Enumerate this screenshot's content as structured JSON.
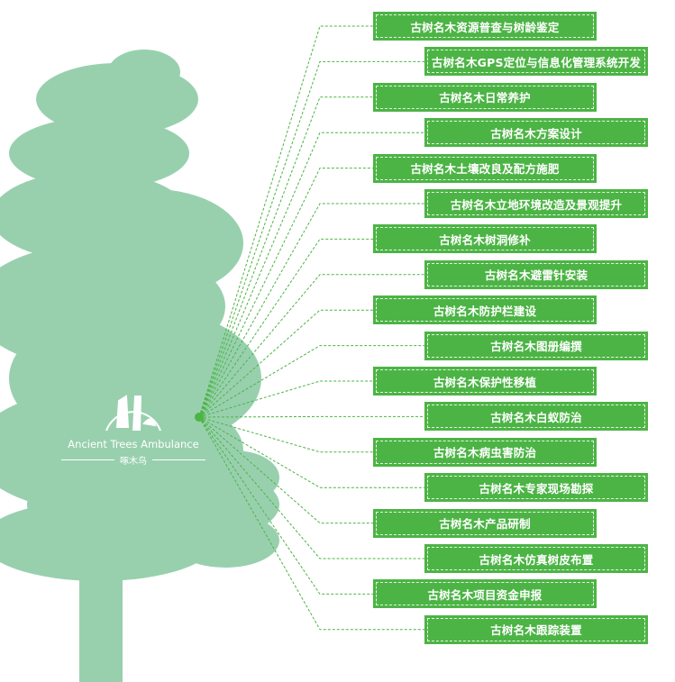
{
  "colors": {
    "tree": "#98d0ae",
    "accent": "#4cb445",
    "line": "#4cb445"
  },
  "logo": {
    "name_en": "Ancient Trees Ambulance",
    "name_cn": "啄木鸟"
  },
  "services": [
    "古树名木资源普查与树龄鉴定",
    "古树名木GPS定位与信息化管理系统开发",
    "古树名木日常养护",
    "古树名木方案设计",
    "古树名木土壤改良及配方施肥",
    "古树名木立地环境改造及景观提升",
    "古树名木树洞修补",
    "古树名木避雷针安装",
    "古树名木防护栏建设",
    "古树名木图册编撰",
    "古树名木保护性移植",
    "古树名木白蚁防治",
    "古树名木病虫害防治",
    "古树名木专家现场勘探",
    "古树名木产品研制",
    "古树名木仿真树皮布置",
    "古树名木项目资金申报",
    "古树名木跟踪装置"
  ]
}
